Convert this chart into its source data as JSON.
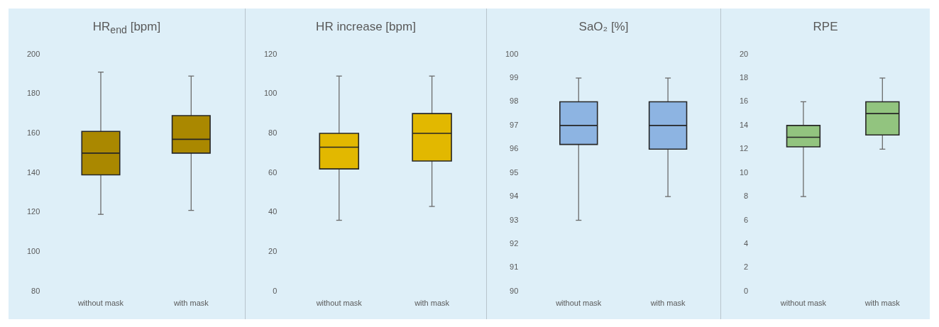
{
  "chart_data": [
    {
      "type": "box",
      "title": "HR$_{end}$ [bpm]",
      "categories": [
        "without mask",
        "with mask"
      ],
      "color": "#aa8800",
      "ylim": [
        80,
        200
      ],
      "yticks": [
        80,
        100,
        120,
        140,
        160,
        180,
        200
      ],
      "boxes": [
        {
          "low": 119,
          "q1": 139,
          "median": 150,
          "q3": 161,
          "high": 191
        },
        {
          "low": 121,
          "q1": 150,
          "median": 157,
          "q3": 169,
          "high": 189
        }
      ]
    },
    {
      "type": "box",
      "title": "HR increase [bpm]",
      "categories": [
        "without mask",
        "with mask"
      ],
      "color": "#e2b800",
      "ylim": [
        0,
        120
      ],
      "yticks": [
        0,
        20,
        40,
        60,
        80,
        100,
        120
      ],
      "boxes": [
        {
          "low": 36,
          "q1": 62,
          "median": 73,
          "q3": 80,
          "high": 109
        },
        {
          "low": 43,
          "q1": 66,
          "median": 80,
          "q3": 90,
          "high": 109
        }
      ]
    },
    {
      "type": "box",
      "title": "SaO₂ [%]",
      "categories": [
        "without mask",
        "with mask"
      ],
      "color": "#8db4e2",
      "ylim": [
        90,
        100
      ],
      "yticks": [
        90,
        91,
        92,
        93,
        94,
        95,
        96,
        97,
        98,
        99,
        100
      ],
      "boxes": [
        {
          "low": 93,
          "q1": 96.2,
          "median": 97,
          "q3": 98,
          "high": 99
        },
        {
          "low": 94,
          "q1": 96,
          "median": 97,
          "q3": 98,
          "high": 99
        }
      ]
    },
    {
      "type": "box",
      "title": "RPE",
      "categories": [
        "without mask",
        "with mask"
      ],
      "color": "#92c47f",
      "ylim": [
        0,
        20
      ],
      "yticks": [
        0,
        2,
        4,
        6,
        8,
        10,
        12,
        14,
        16,
        18,
        20
      ],
      "boxes": [
        {
          "low": 8,
          "q1": 12.2,
          "median": 13,
          "q3": 14,
          "high": 16
        },
        {
          "low": 12,
          "q1": 13.2,
          "median": 15,
          "q3": 16,
          "high": 18
        }
      ]
    }
  ]
}
